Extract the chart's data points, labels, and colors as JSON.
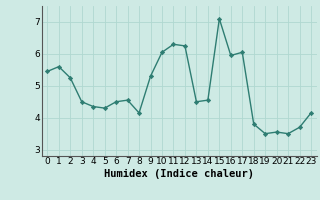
{
  "x": [
    0,
    1,
    2,
    3,
    4,
    5,
    6,
    7,
    8,
    9,
    10,
    11,
    12,
    13,
    14,
    15,
    16,
    17,
    18,
    19,
    20,
    21,
    22,
    23
  ],
  "y": [
    5.45,
    5.6,
    5.25,
    4.5,
    4.35,
    4.3,
    4.5,
    4.55,
    4.15,
    5.3,
    6.05,
    6.3,
    6.25,
    4.5,
    4.55,
    7.1,
    5.95,
    6.05,
    3.8,
    3.5,
    3.55,
    3.5,
    3.7,
    4.15
  ],
  "line_color": "#2e7d72",
  "marker": "D",
  "marker_size": 2.2,
  "linewidth": 1.0,
  "bg_color": "#ceeae4",
  "grid_color": "#b0d8d0",
  "xlabel": "Humidex (Indice chaleur)",
  "xlim": [
    -0.5,
    23.5
  ],
  "ylim": [
    2.8,
    7.5
  ],
  "yticks": [
    3,
    4,
    5,
    6,
    7
  ],
  "xticks": [
    0,
    1,
    2,
    3,
    4,
    5,
    6,
    7,
    8,
    9,
    10,
    11,
    12,
    13,
    14,
    15,
    16,
    17,
    18,
    19,
    20,
    21,
    22,
    23
  ],
  "xlabel_fontsize": 7.5,
  "tick_fontsize": 6.5
}
